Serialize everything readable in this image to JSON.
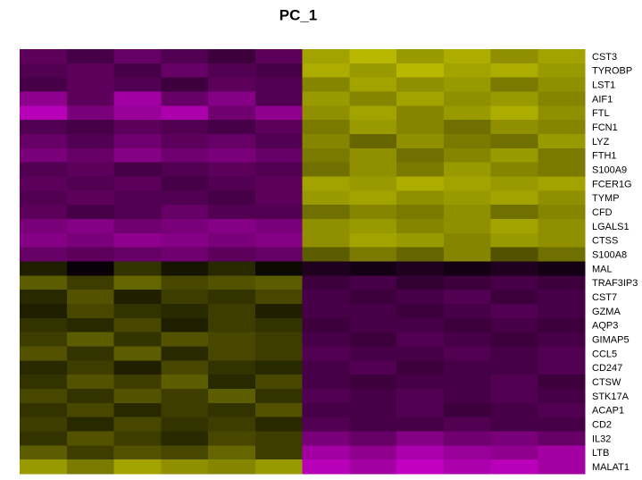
{
  "chart_data": {
    "type": "heatmap",
    "title": "PC_1",
    "rows": [
      "CST3",
      "TYROBP",
      "LST1",
      "AIF1",
      "FTL",
      "FCN1",
      "LYZ",
      "FTH1",
      "S100A9",
      "FCER1G",
      "TYMP",
      "CFD",
      "LGALS1",
      "CTSS",
      "S100A8",
      "MAL",
      "TRAF3IP3",
      "CST7",
      "GZMA",
      "AQP3",
      "GIMAP5",
      "CCL5",
      "CD247",
      "CTSW",
      "STK17A",
      "ACAP1",
      "CD2",
      "IL32",
      "LTB",
      "MALAT1"
    ],
    "values": [
      [
        -0.9,
        -0.7,
        -1.0,
        -0.8,
        -0.6,
        -0.9,
        1.6,
        1.8,
        1.5,
        1.7,
        1.4,
        1.6
      ],
      [
        -0.8,
        -0.9,
        -0.7,
        -1.0,
        -0.8,
        -0.7,
        1.7,
        1.5,
        1.8,
        1.6,
        1.7,
        1.5
      ],
      [
        -0.7,
        -0.9,
        -0.8,
        -0.6,
        -0.9,
        -0.8,
        1.3,
        1.6,
        1.4,
        1.5,
        1.2,
        1.4
      ],
      [
        -1.4,
        -0.9,
        -1.6,
        -1.0,
        -1.3,
        -0.8,
        1.5,
        1.3,
        1.6,
        1.4,
        1.5,
        1.3
      ],
      [
        -1.8,
        -1.2,
        -1.5,
        -1.7,
        -1.1,
        -1.4,
        1.4,
        1.6,
        1.3,
        1.5,
        1.7,
        1.4
      ],
      [
        -0.8,
        -0.7,
        -0.9,
        -0.8,
        -0.7,
        -0.9,
        1.2,
        1.5,
        1.3,
        1.1,
        1.4,
        1.3
      ],
      [
        -1.0,
        -0.8,
        -1.1,
        -0.9,
        -1.0,
        -0.8,
        1.3,
        1.0,
        1.4,
        1.2,
        1.1,
        1.5
      ],
      [
        -1.2,
        -1.0,
        -1.3,
        -1.1,
        -1.2,
        -1.0,
        1.2,
        1.4,
        1.1,
        1.3,
        1.5,
        1.2
      ],
      [
        -0.8,
        -0.9,
        -0.7,
        -0.8,
        -0.9,
        -0.8,
        1.1,
        1.4,
        1.2,
        1.5,
        1.3,
        1.2
      ],
      [
        -0.9,
        -0.8,
        -0.9,
        -0.7,
        -0.8,
        -0.9,
        1.6,
        1.5,
        1.7,
        1.6,
        1.5,
        1.6
      ],
      [
        -0.8,
        -0.9,
        -0.8,
        -0.8,
        -0.7,
        -0.9,
        1.5,
        1.6,
        1.4,
        1.5,
        1.6,
        1.4
      ],
      [
        -0.9,
        -0.7,
        -0.8,
        -1.0,
        -0.8,
        -0.8,
        1.1,
        1.3,
        1.2,
        1.4,
        1.1,
        1.3
      ],
      [
        -1.2,
        -1.3,
        -1.1,
        -1.2,
        -1.3,
        -1.2,
        1.4,
        1.5,
        1.3,
        1.4,
        1.6,
        1.4
      ],
      [
        -1.3,
        -1.2,
        -1.4,
        -1.3,
        -1.2,
        -1.3,
        1.4,
        1.6,
        1.5,
        1.3,
        1.5,
        1.4
      ],
      [
        -1.0,
        -0.9,
        -1.0,
        -1.1,
        -0.9,
        -1.0,
        0.9,
        1.2,
        1.0,
        1.3,
        0.8,
        1.1
      ],
      [
        0.3,
        -0.1,
        0.5,
        0.2,
        0.4,
        0.1,
        -0.3,
        -0.2,
        -0.3,
        -0.2,
        -0.3,
        -0.2
      ],
      [
        0.9,
        0.6,
        1.0,
        0.7,
        0.8,
        0.9,
        -0.6,
        -0.7,
        -0.5,
        -0.6,
        -0.7,
        -0.6
      ],
      [
        0.4,
        0.8,
        0.3,
        0.6,
        0.5,
        0.7,
        -0.7,
        -0.6,
        -0.7,
        -0.8,
        -0.6,
        -0.7
      ],
      [
        0.3,
        0.7,
        0.5,
        0.4,
        0.6,
        0.3,
        -0.7,
        -0.7,
        -0.6,
        -0.7,
        -0.8,
        -0.7
      ],
      [
        0.5,
        0.4,
        0.7,
        0.3,
        0.6,
        0.5,
        -0.6,
        -0.7,
        -0.7,
        -0.6,
        -0.7,
        -0.6
      ],
      [
        0.6,
        0.9,
        0.5,
        0.8,
        0.7,
        0.6,
        -0.7,
        -0.6,
        -0.8,
        -0.7,
        -0.6,
        -0.7
      ],
      [
        0.8,
        0.5,
        0.9,
        0.4,
        0.7,
        0.6,
        -0.8,
        -0.7,
        -0.7,
        -0.8,
        -0.7,
        -0.8
      ],
      [
        0.4,
        0.6,
        0.3,
        0.7,
        0.5,
        0.4,
        -0.7,
        -0.8,
        -0.6,
        -0.7,
        -0.7,
        -0.8
      ],
      [
        0.5,
        0.8,
        0.6,
        0.9,
        0.4,
        0.7,
        -0.7,
        -0.6,
        -0.7,
        -0.7,
        -0.8,
        -0.6
      ],
      [
        0.7,
        0.5,
        0.8,
        0.6,
        0.9,
        0.5,
        -0.8,
        -0.7,
        -0.8,
        -0.7,
        -0.8,
        -0.7
      ],
      [
        0.5,
        0.7,
        0.4,
        0.6,
        0.5,
        0.8,
        -0.7,
        -0.7,
        -0.8,
        -0.6,
        -0.7,
        -0.8
      ],
      [
        0.6,
        0.4,
        0.7,
        0.5,
        0.6,
        0.4,
        -0.8,
        -0.7,
        -0.7,
        -0.8,
        -0.7,
        -0.7
      ],
      [
        0.5,
        0.8,
        0.6,
        0.4,
        0.7,
        0.6,
        -1.2,
        -1.0,
        -1.3,
        -1.1,
        -1.2,
        -1.0
      ],
      [
        0.9,
        0.6,
        0.8,
        0.7,
        1.0,
        0.6,
        -1.6,
        -1.4,
        -1.7,
        -1.5,
        -1.4,
        -1.6
      ],
      [
        1.5,
        1.2,
        1.6,
        1.4,
        1.3,
        1.5,
        -1.8,
        -1.6,
        -1.9,
        -1.7,
        -1.8,
        -1.6
      ]
    ],
    "colorscale": {
      "min": -2.5,
      "max": 2.5,
      "low": "#ff00ff",
      "mid": "#000000",
      "high": "#ffff00"
    }
  }
}
